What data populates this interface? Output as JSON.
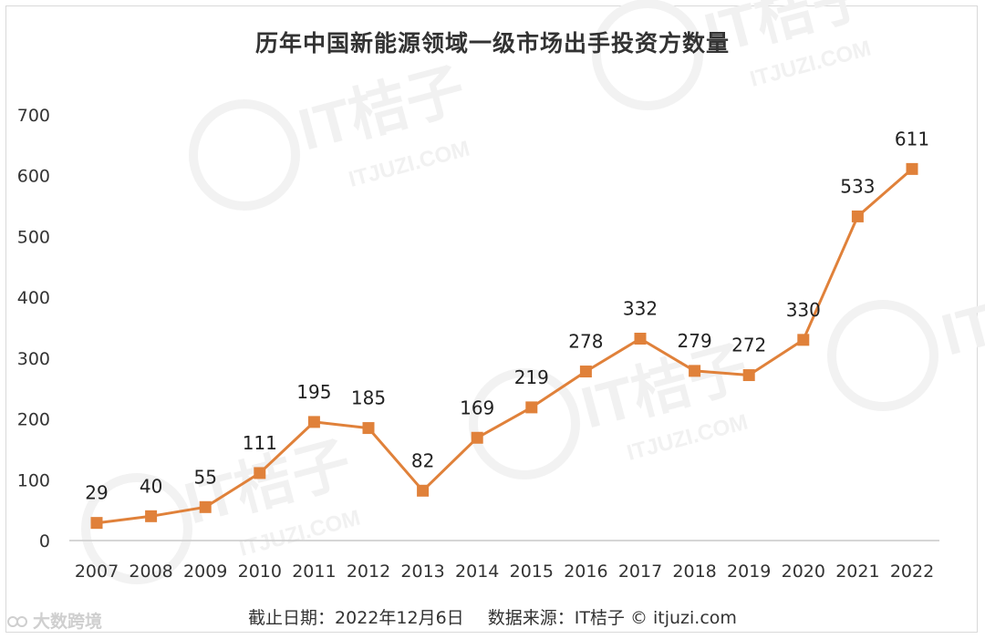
{
  "title": "历年中国新能源领域一级市场出手投资方数量",
  "footer": {
    "date_label": "截止日期：2022年12月6日",
    "source_label": "数据来源：IT桔子 © itjuzi.com"
  },
  "watermark": {
    "brand": "IT桔子",
    "domain": "ITJUZI.COM"
  },
  "corner_brand": "大数跨境",
  "colors": {
    "series": "#e0813a",
    "axis": "#c9c9c9",
    "text": "#333333",
    "watermark": "#f1f1f1"
  },
  "chart_data": {
    "type": "line",
    "title": "历年中国新能源领域一级市场出手投资方数量",
    "xlabel": "",
    "ylabel": "",
    "categories": [
      "2007",
      "2008",
      "2009",
      "2010",
      "2011",
      "2012",
      "2013",
      "2014",
      "2015",
      "2016",
      "2017",
      "2018",
      "2019",
      "2020",
      "2021",
      "2022"
    ],
    "values": [
      29,
      40,
      55,
      111,
      195,
      185,
      82,
      169,
      219,
      278,
      332,
      279,
      272,
      330,
      533,
      611
    ],
    "ylim": [
      0,
      700
    ],
    "yticks": [
      0,
      100,
      200,
      300,
      400,
      500,
      600,
      700
    ],
    "grid": false,
    "marker": "square",
    "data_labels": true
  }
}
